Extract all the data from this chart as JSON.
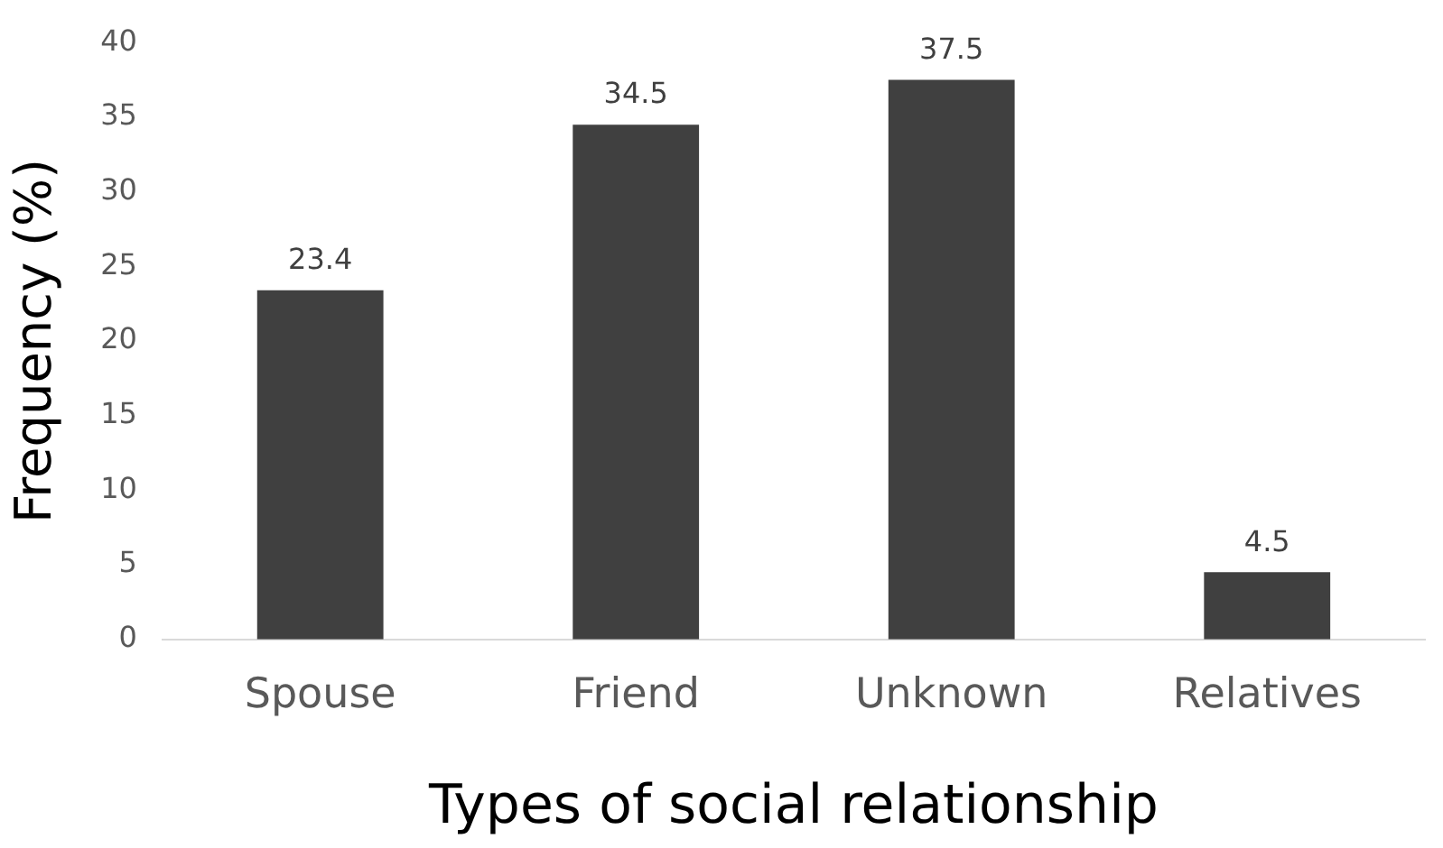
{
  "chart_data": {
    "type": "bar",
    "xlabel": "Types of social relationship",
    "ylabel": "Frequency (%)",
    "categories": [
      "Spouse",
      "Friend",
      "Unknown",
      "Relatives"
    ],
    "values": [
      23.4,
      34.5,
      37.5,
      4.5
    ],
    "color": "#404040",
    "ylim": [
      0,
      40
    ],
    "yticks": [
      0,
      5,
      10,
      15,
      20,
      25,
      30,
      35,
      40
    ],
    "grid": false,
    "legend": false,
    "data_labels": true
  }
}
